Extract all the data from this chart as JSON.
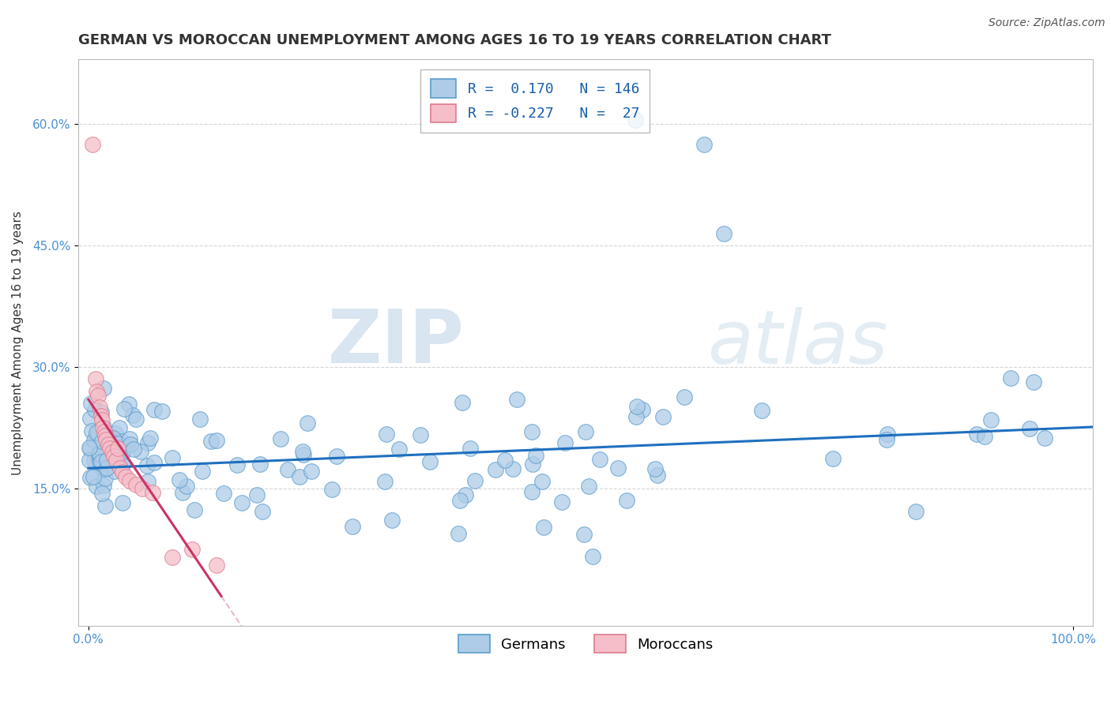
{
  "title": "GERMAN VS MOROCCAN UNEMPLOYMENT AMONG AGES 16 TO 19 YEARS CORRELATION CHART",
  "source": "Source: ZipAtlas.com",
  "ylabel": "Unemployment Among Ages 16 to 19 years",
  "xlim": [
    -0.01,
    1.02
  ],
  "ylim": [
    -0.02,
    0.68
  ],
  "x_ticks": [
    0.0,
    1.0
  ],
  "x_tick_labels": [
    "0.0%",
    "100.0%"
  ],
  "y_ticks": [
    0.15,
    0.3,
    0.45,
    0.6
  ],
  "y_tick_labels": [
    "15.0%",
    "30.0%",
    "45.0%",
    "60.0%"
  ],
  "german_color": "#aecce8",
  "german_edge": "#5b9dcc",
  "moroccan_color": "#f5bec8",
  "moroccan_edge": "#de7a90",
  "trend_german_color": "#1f6fbf",
  "trend_moroccan_color": "#cc3366",
  "legend_r_german": "0.170",
  "legend_n_german": "146",
  "legend_r_moroccan": "-0.227",
  "legend_n_moroccan": "27",
  "watermark_zip": "ZIP",
  "watermark_atlas": "atlas",
  "watermark_color_zip": "#b8cfe8",
  "watermark_color_atlas": "#c8dde8",
  "background_color": "#ffffff",
  "grid_color": "#cccccc",
  "title_fontsize": 13,
  "axis_label_fontsize": 11,
  "tick_fontsize": 11,
  "legend_fontsize": 13,
  "source_fontsize": 10
}
